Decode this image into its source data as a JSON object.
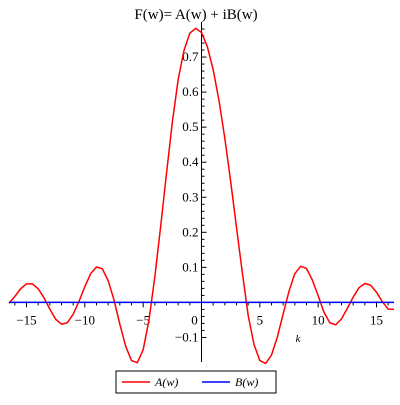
{
  "chart_data": {
    "type": "line",
    "title": "F(w)= A(w) + iB(w)",
    "xlabel": "k",
    "ylabel": "",
    "xlim": [
      -16.5,
      16.5
    ],
    "ylim": [
      -0.17,
      0.8
    ],
    "x_ticks": [
      {
        "value": -15,
        "label": "−15"
      },
      {
        "value": -10,
        "label": "−10"
      },
      {
        "value": -5,
        "label": "−5"
      },
      {
        "value": 0,
        "label": "0"
      },
      {
        "value": 5,
        "label": "5"
      },
      {
        "value": 10,
        "label": "10"
      },
      {
        "value": 15,
        "label": "15"
      }
    ],
    "y_ticks": [
      {
        "value": -0.1,
        "label": "−0.1"
      },
      {
        "value": 0.1,
        "label": "0.1"
      },
      {
        "value": 0.2,
        "label": "0.2"
      },
      {
        "value": 0.3,
        "label": "0.3"
      },
      {
        "value": 0.4,
        "label": "0.4"
      },
      {
        "value": 0.5,
        "label": "0.5"
      },
      {
        "value": 0.6,
        "label": "0.6"
      },
      {
        "value": 0.7,
        "label": "0.7"
      }
    ],
    "grid": false,
    "legend_position": "bottom-center",
    "series": [
      {
        "name": "A(w)",
        "color": "#ff0000",
        "x": [
          -16.5,
          -16.0,
          -15.5,
          -15.0,
          -14.5,
          -14.0,
          -13.5,
          -13.0,
          -12.5,
          -12.0,
          -11.5,
          -11.0,
          -10.5,
          -10.0,
          -9.5,
          -9.0,
          -8.5,
          -8.0,
          -7.5,
          -7.0,
          -6.5,
          -6.0,
          -5.5,
          -5.0,
          -4.5,
          -4.0,
          -3.5,
          -3.0,
          -2.5,
          -2.0,
          -1.5,
          -1.0,
          -0.5,
          0.0,
          0.5,
          1.0,
          1.5,
          2.0,
          2.5,
          3.0,
          3.5,
          4.0,
          4.5,
          5.0,
          5.5,
          6.0,
          6.5,
          7.0,
          7.5,
          8.0,
          8.5,
          9.0,
          9.5,
          10.0,
          10.5,
          11.0,
          11.5,
          12.0,
          12.5,
          13.0,
          13.5,
          14.0,
          14.5,
          15.0,
          15.5,
          16.0,
          16.5
        ],
        "y": [
          -0.002,
          0.017,
          0.039,
          0.053,
          0.053,
          0.039,
          0.013,
          -0.019,
          -0.048,
          -0.062,
          -0.058,
          -0.034,
          0.003,
          0.045,
          0.082,
          0.101,
          0.096,
          0.062,
          0.007,
          -0.062,
          -0.125,
          -0.166,
          -0.172,
          -0.135,
          -0.05,
          0.073,
          0.217,
          0.368,
          0.514,
          0.636,
          0.719,
          0.768,
          0.782,
          0.77,
          0.73,
          0.664,
          0.576,
          0.468,
          0.345,
          0.214,
          0.085,
          -0.037,
          -0.12,
          -0.166,
          -0.174,
          -0.15,
          -0.099,
          -0.033,
          0.032,
          0.082,
          0.103,
          0.097,
          0.064,
          0.019,
          -0.028,
          -0.058,
          -0.064,
          -0.047,
          -0.017,
          0.015,
          0.042,
          0.054,
          0.049,
          0.029,
          0.002,
          -0.019,
          -0.02
        ]
      },
      {
        "name": "B(w)",
        "color": "#0000ff",
        "x": [
          -16.5,
          16.5
        ],
        "y": [
          0,
          0
        ]
      }
    ]
  }
}
